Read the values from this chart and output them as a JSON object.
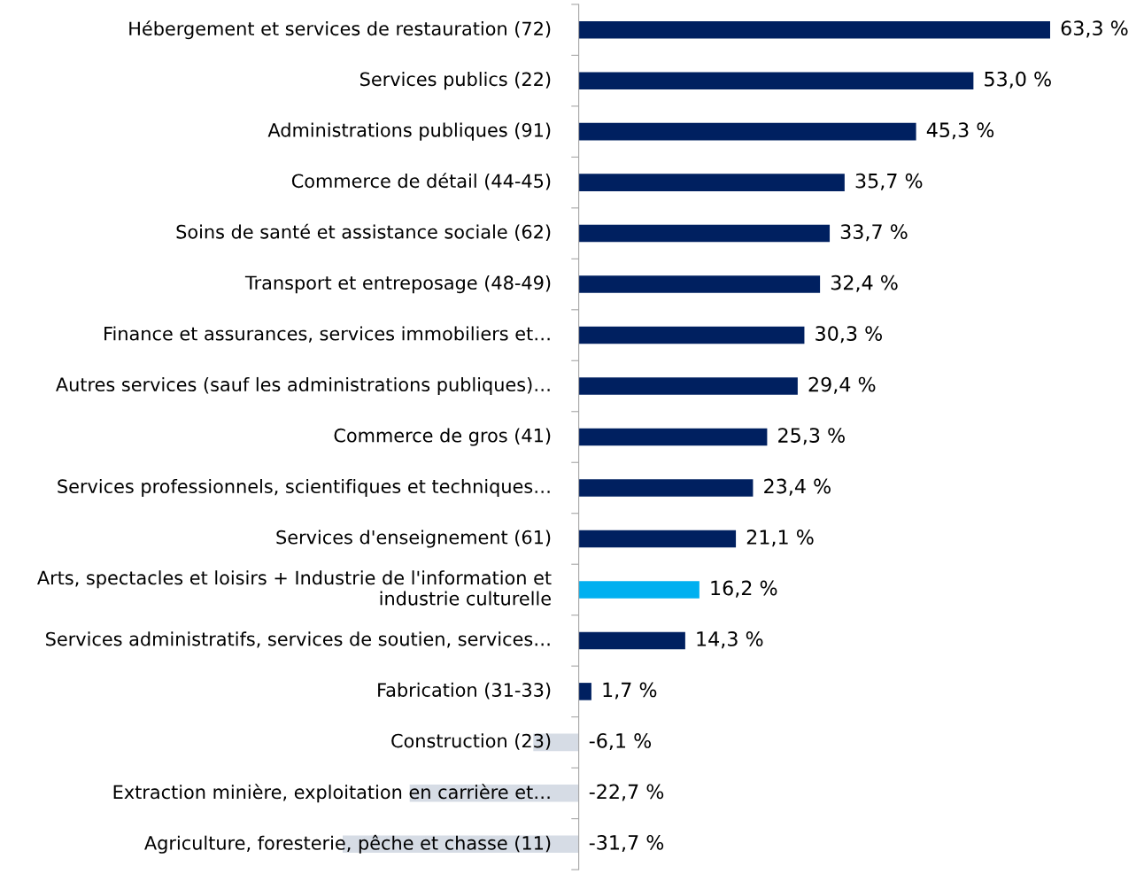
{
  "chart_data": {
    "type": "bar",
    "orientation": "horizontal",
    "relative": false,
    "categories": [
      "Hébergement et services de restauration (72)",
      "Services publics (22)",
      "Administrations publiques (91)",
      "Commerce de détail (44-45)",
      "Soins de santé et assistance sociale (62)",
      "Transport et entreposage (48-49)",
      "Finance et assurances, services immobiliers et…",
      "Autres services (sauf les administrations publiques)…",
      "Commerce de gros (41)",
      "Services professionnels, scientifiques et techniques…",
      "Services d'enseignement (61)",
      "Arts, spectacles et loisirs + Industrie de l'information et\nindustrie culturelle",
      "Services administratifs, services de soutien, services…",
      "Fabrication (31-33)",
      "Construction (23)",
      "Extraction minière, exploitation en carrière et…",
      "Agriculture, foresterie, pêche et chasse (11)"
    ],
    "values": [
      63.3,
      53.0,
      45.3,
      35.7,
      33.7,
      32.4,
      30.3,
      29.4,
      25.3,
      23.4,
      21.1,
      16.2,
      14.3,
      1.7,
      -6.1,
      -22.7,
      -31.7
    ],
    "value_labels": [
      "63,3 %",
      "53,0 %",
      "45,3 %",
      "35,7 %",
      "33,7 %",
      "32,4 %",
      "30,3 %",
      "29,4 %",
      "25,3 %",
      "23,4 %",
      "21,1 %",
      "16,2 %",
      "14,3 %",
      "1,7 %",
      "-6,1 %",
      "-22,7 %",
      "-31,7 %"
    ],
    "colors": [
      "#002060",
      "#002060",
      "#002060",
      "#002060",
      "#002060",
      "#002060",
      "#002060",
      "#002060",
      "#002060",
      "#002060",
      "#002060",
      "#00b0f0",
      "#002060",
      "#002060",
      "#d6dce5",
      "#d6dce5",
      "#d6dce5"
    ],
    "grid": false,
    "legend": false
  }
}
